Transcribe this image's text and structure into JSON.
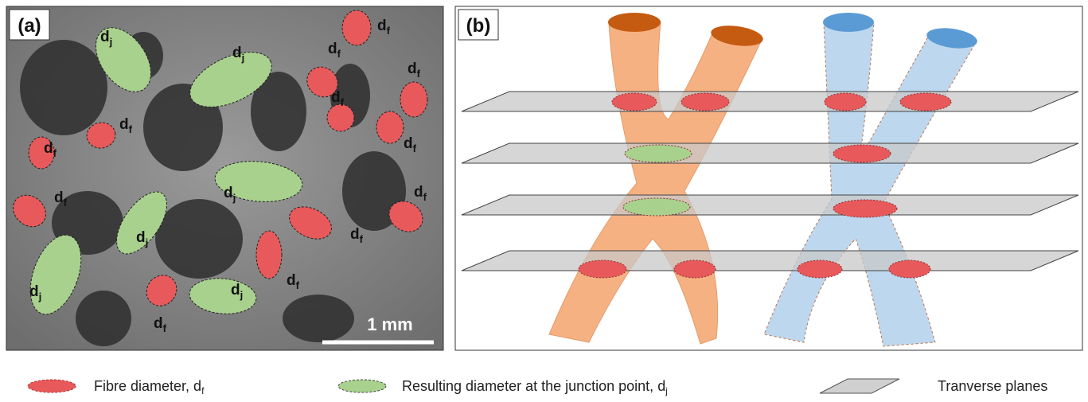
{
  "panels": [
    {
      "label": "(a)",
      "scale_bar": "1 mm",
      "annotations": [
        {
          "symbol": "d",
          "subscript": "j"
        },
        {
          "symbol": "d",
          "subscript": "f"
        },
        {
          "symbol": "d",
          "subscript": "j"
        },
        {
          "symbol": "d",
          "subscript": "f"
        },
        {
          "symbol": "d",
          "subscript": "f"
        },
        {
          "symbol": "d",
          "subscript": "f"
        },
        {
          "symbol": "d",
          "subscript": "f"
        },
        {
          "symbol": "d",
          "subscript": "f"
        },
        {
          "symbol": "d",
          "subscript": "f"
        },
        {
          "symbol": "d",
          "subscript": "j"
        },
        {
          "symbol": "d",
          "subscript": "f"
        },
        {
          "symbol": "d",
          "subscript": "f"
        },
        {
          "symbol": "d",
          "subscript": "j"
        },
        {
          "symbol": "d",
          "subscript": "f"
        },
        {
          "symbol": "d",
          "subscript": "j"
        },
        {
          "symbol": "d",
          "subscript": "f"
        },
        {
          "symbol": "d",
          "subscript": "j"
        },
        {
          "symbol": "d",
          "subscript": "f"
        }
      ]
    },
    {
      "label": "(b)"
    }
  ],
  "legend": [
    {
      "text": "Fibre diameter, d",
      "subscript": "f"
    },
    {
      "text": "Resulting diameter at the junction point, d",
      "subscript": "j"
    },
    {
      "text": "Tranverse planes"
    }
  ]
}
